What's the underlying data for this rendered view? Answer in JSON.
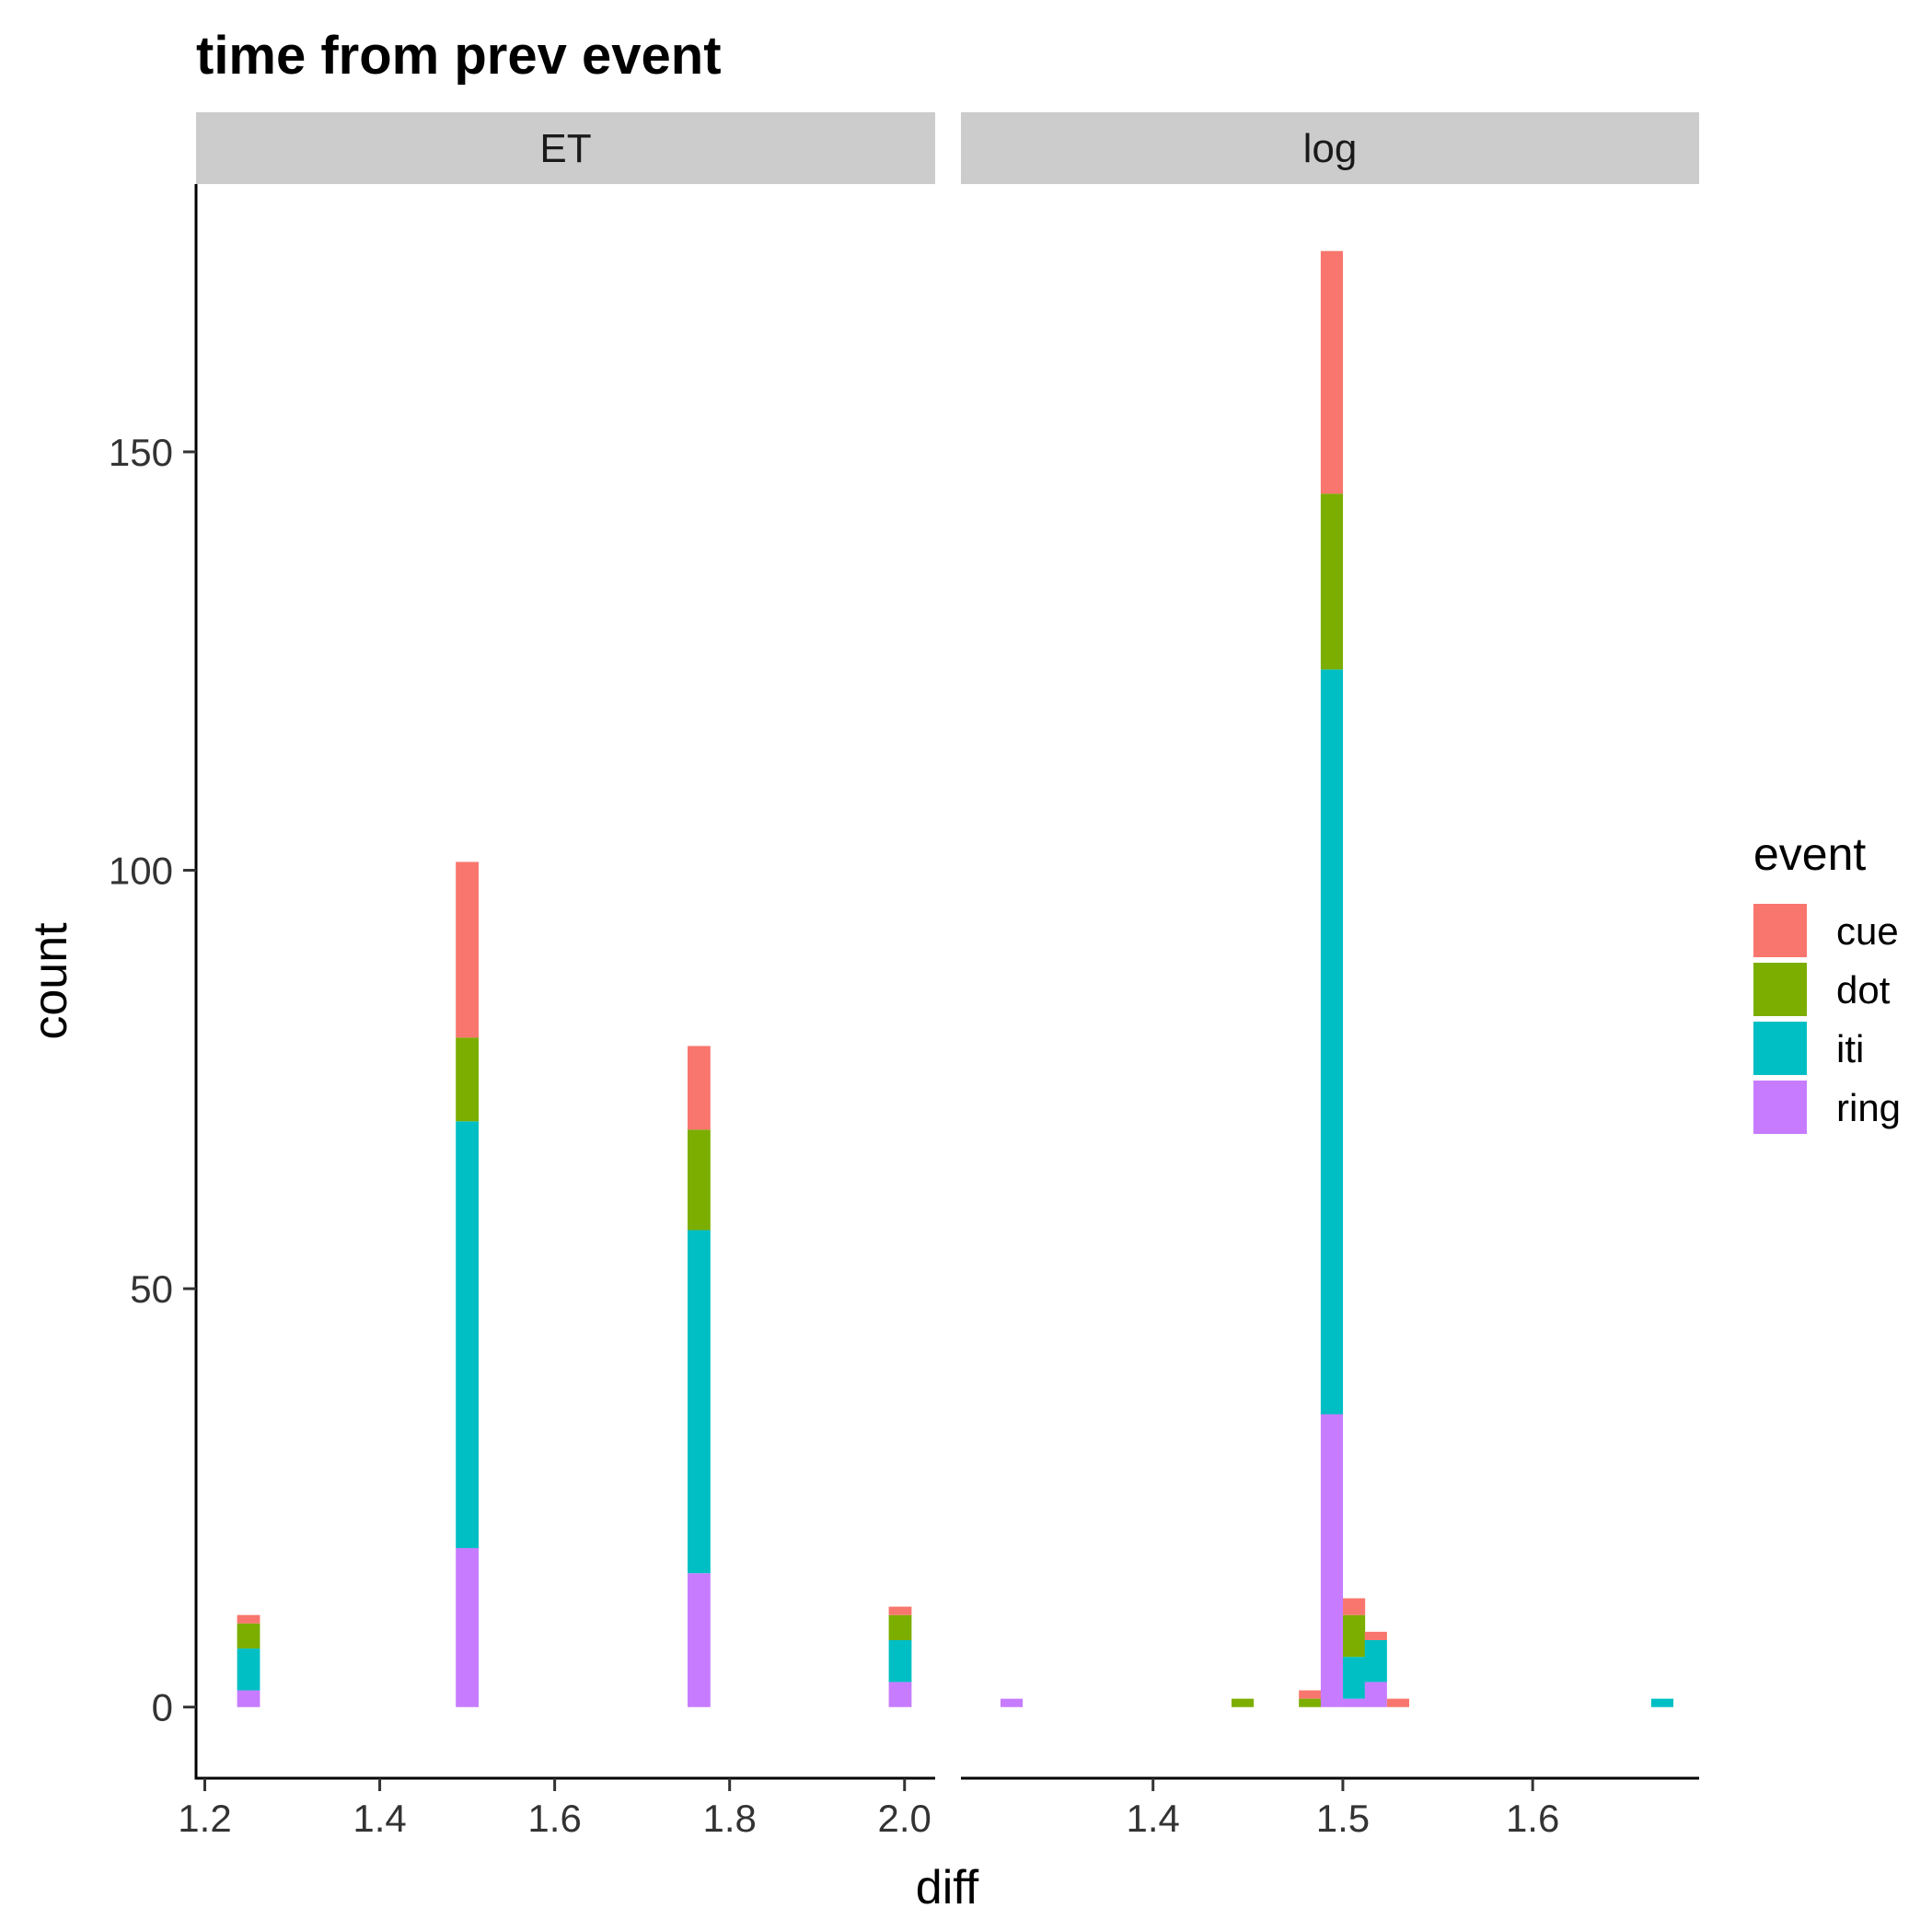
{
  "chart_data": {
    "type": "bar",
    "subtype": "stacked-histogram",
    "title": "time from prev event",
    "xlabel": "diff",
    "ylabel": "count",
    "ylim": [
      -8.5,
      182
    ],
    "y_ticks": [
      0,
      50,
      100,
      150
    ],
    "y_tick_labels": [
      "0",
      "50",
      "100",
      "150"
    ],
    "grid": false,
    "legend": {
      "title": "event",
      "position": "right",
      "entries": [
        "cue",
        "dot",
        "iti",
        "ring"
      ]
    },
    "colors": {
      "cue": "#F8766D",
      "dot": "#7CAE00",
      "iti": "#00BFC4",
      "ring": "#C77CFF",
      "strip": "#CCCCCC"
    },
    "stack_order": [
      "ring",
      "iti",
      "dot",
      "cue"
    ],
    "panels": [
      {
        "label": "ET",
        "xlim": [
          1.19,
          2.035
        ],
        "x_ticks": [
          1.2,
          1.4,
          1.6,
          1.8,
          2.0
        ],
        "x_tick_labels": [
          "1.2",
          "1.4",
          "1.6",
          "1.8",
          "2.0"
        ],
        "bin_width": 0.0261,
        "bins": [
          {
            "x": 1.25,
            "ring": 2,
            "iti": 5,
            "dot": 3,
            "cue": 1
          },
          {
            "x": 1.5,
            "ring": 19,
            "iti": 51,
            "dot": 10,
            "cue": 21
          },
          {
            "x": 1.765,
            "ring": 16,
            "iti": 41,
            "dot": 12,
            "cue": 10
          },
          {
            "x": 1.995,
            "ring": 3,
            "iti": 5,
            "dot": 3,
            "cue": 1
          }
        ]
      },
      {
        "label": "log",
        "xlim": [
          1.2988,
          1.6877
        ],
        "x_ticks": [
          1.4,
          1.5,
          1.6
        ],
        "x_tick_labels": [
          "1.4",
          "1.5",
          "1.6"
        ],
        "bin_width": 0.0117,
        "bins": [
          {
            "x": 1.3255,
            "ring": 1,
            "iti": 0,
            "dot": 0,
            "cue": 0
          },
          {
            "x": 1.4472,
            "ring": 0,
            "iti": 0,
            "dot": 1,
            "cue": 0
          },
          {
            "x": 1.4827,
            "ring": 0,
            "iti": 0,
            "dot": 1,
            "cue": 1
          },
          {
            "x": 1.4942,
            "ring": 35,
            "iti": 89,
            "dot": 21,
            "cue": 29
          },
          {
            "x": 1.5059,
            "ring": 1,
            "iti": 5,
            "dot": 5,
            "cue": 2
          },
          {
            "x": 1.5174,
            "ring": 3,
            "iti": 5,
            "dot": 0,
            "cue": 1
          },
          {
            "x": 1.5291,
            "ring": 0,
            "iti": 0,
            "dot": 0,
            "cue": 1
          },
          {
            "x": 1.6683,
            "ring": 0,
            "iti": 1,
            "dot": 0,
            "cue": 0
          }
        ]
      }
    ]
  }
}
